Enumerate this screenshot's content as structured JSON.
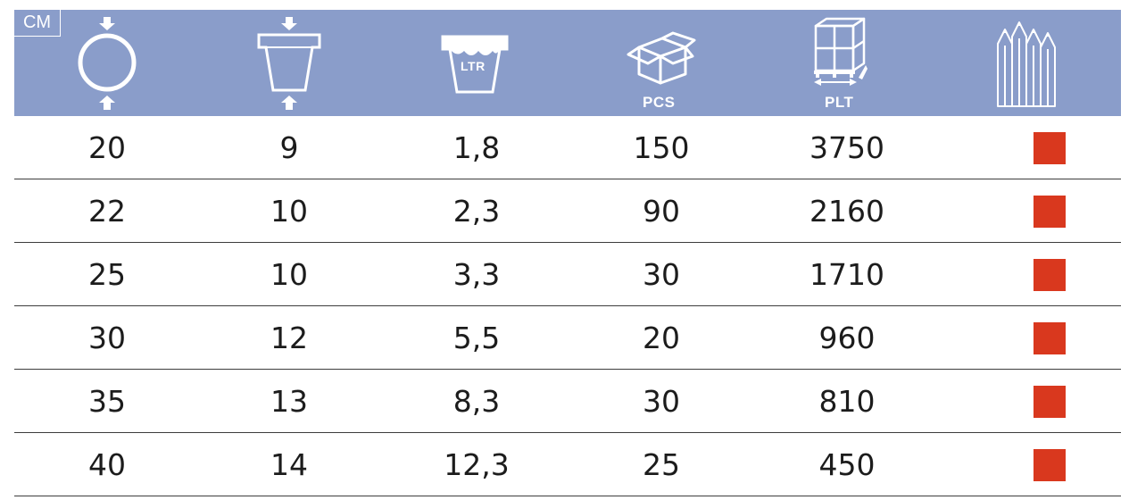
{
  "header": {
    "unit_label": "CM",
    "columns": [
      {
        "icon": "diameter-circle-icon",
        "label": ""
      },
      {
        "icon": "pot-height-icon",
        "label": ""
      },
      {
        "icon": "volume-liter-icon",
        "label": "LTR"
      },
      {
        "icon": "box-pieces-icon",
        "label": "PCS"
      },
      {
        "icon": "pallet-icon",
        "label": "PLT"
      },
      {
        "icon": "color-pencils-icon",
        "label": ""
      }
    ]
  },
  "rows": [
    {
      "diameter": "20",
      "height": "9",
      "volume": "1,8",
      "pcs": "150",
      "plt": "3750",
      "color": "#d9381e"
    },
    {
      "diameter": "22",
      "height": "10",
      "volume": "2,3",
      "pcs": "90",
      "plt": "2160",
      "color": "#d9381e"
    },
    {
      "diameter": "25",
      "height": "10",
      "volume": "3,3",
      "pcs": "30",
      "plt": "1710",
      "color": "#d9381e"
    },
    {
      "diameter": "30",
      "height": "12",
      "volume": "5,5",
      "pcs": "20",
      "plt": "960",
      "color": "#d9381e"
    },
    {
      "diameter": "35",
      "height": "13",
      "volume": "8,3",
      "pcs": "30",
      "plt": "810",
      "color": "#d9381e"
    },
    {
      "diameter": "40",
      "height": "14",
      "volume": "12,3",
      "pcs": "25",
      "plt": "450",
      "color": "#d9381e"
    }
  ],
  "colors": {
    "header_bg": "#8a9dca",
    "divider": "#3d3d3d",
    "swatch": "#d9381e"
  }
}
